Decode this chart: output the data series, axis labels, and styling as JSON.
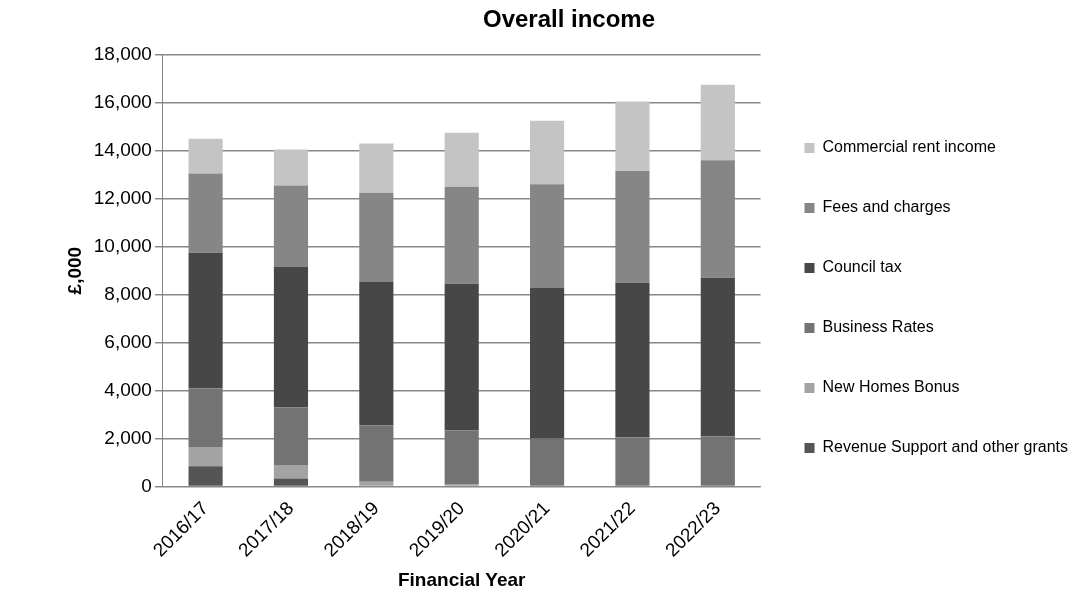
{
  "chart_data": {
    "type": "bar",
    "title": "Overall income",
    "xlabel": "Financial Year",
    "ylabel": "£,000",
    "stacked": true,
    "grid": "y",
    "legend": "right",
    "categories": [
      "2016/17",
      "2017/18",
      "2018/19",
      "2019/20",
      "2020/21",
      "2021/22",
      "2022/23"
    ],
    "ylim": [
      0,
      18000
    ],
    "yticks": [
      {
        "value": 0,
        "label": "0"
      },
      {
        "value": 2000,
        "label": "2,000"
      },
      {
        "value": 4000,
        "label": "4,000"
      },
      {
        "value": 6000,
        "label": "6,000"
      },
      {
        "value": 8000,
        "label": "8,000"
      },
      {
        "value": 10000,
        "label": "10,000"
      },
      {
        "value": 12000,
        "label": "12,000"
      },
      {
        "value": 14000,
        "label": "14,000"
      },
      {
        "value": 16000,
        "label": "16,000"
      },
      {
        "value": 18000,
        "label": "18,000"
      }
    ],
    "series": [
      {
        "name": "Revenue Support and other grants",
        "color": "#555555",
        "values": [
          850,
          330,
          0,
          0,
          0,
          0,
          0
        ]
      },
      {
        "name": "New Homes Bonus",
        "color": "#a3a3a3",
        "values": [
          800,
          570,
          200,
          100,
          0,
          0,
          0
        ]
      },
      {
        "name": "Business Rates",
        "color": "#737373",
        "values": [
          2450,
          2400,
          2350,
          2250,
          2000,
          2050,
          2100
        ]
      },
      {
        "name": "Council tax",
        "color": "#474747",
        "values": [
          5650,
          5850,
          6000,
          6100,
          6300,
          6450,
          6600
        ]
      },
      {
        "name": "Fees and charges",
        "color": "#868686",
        "values": [
          3300,
          3400,
          3700,
          4050,
          4300,
          4650,
          4900
        ]
      },
      {
        "name": "Commercial rent income",
        "color": "#c4c4c4",
        "values": [
          1450,
          1500,
          2050,
          2250,
          2650,
          2900,
          3150
        ]
      }
    ]
  }
}
